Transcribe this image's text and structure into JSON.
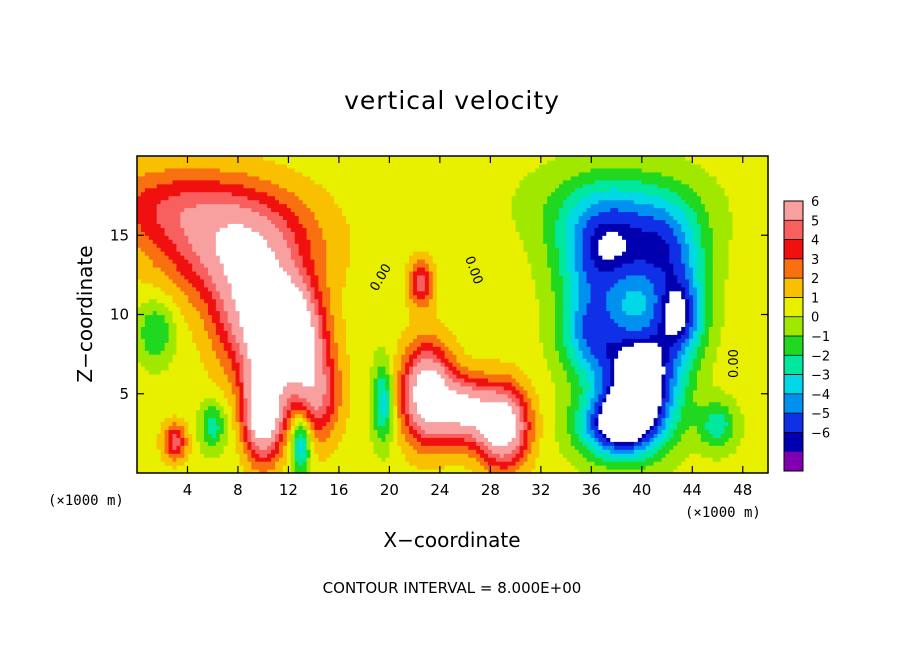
{
  "chart_data": {
    "type": "heatmap",
    "title": "vertical velocity",
    "xlabel": "X−coordinate",
    "ylabel": "Z−coordinate",
    "x_unit_label_left": "(×1000 m)",
    "x_unit_label_right": "(×1000 m)",
    "footer": "CONTOUR INTERVAL = 8.000E+00",
    "contour_label": "0.00",
    "xlim": [
      0,
      50
    ],
    "ylim": [
      0,
      20
    ],
    "x_ticks": [
      4,
      8,
      12,
      16,
      20,
      24,
      28,
      32,
      36,
      40,
      44,
      48
    ],
    "y_ticks": [
      5,
      10,
      15
    ],
    "colorbar": {
      "levels": [
        6,
        5,
        4,
        3,
        2,
        1,
        0,
        -1,
        -2,
        -3,
        -4,
        -5,
        -6
      ],
      "tick_labels": [
        "6",
        "5",
        "4",
        "3",
        "2",
        "1",
        "0",
        "−1",
        "−2",
        "−3",
        "−4",
        "−5",
        "−6"
      ],
      "colors": [
        "#f8a0a0",
        "#f86060",
        "#f01010",
        "#f87010",
        "#f8c000",
        "#e8f000",
        "#a0e800",
        "#20d820",
        "#00e8a0",
        "#00d8e8",
        "#0090f0",
        "#1030e8",
        "#0000b0",
        "#8000b0"
      ]
    },
    "features": [
      {
        "kind": "updraft",
        "x": 8,
        "z": 14.5,
        "sx": 6,
        "sz": 3.5,
        "w": 5.5
      },
      {
        "kind": "updraft",
        "x": 9,
        "z": 10,
        "sx": 3,
        "sz": 4,
        "w": 5
      },
      {
        "kind": "updraft",
        "x": 12,
        "z": 9,
        "sx": 2.5,
        "sz": 3,
        "w": 9
      },
      {
        "kind": "updraft",
        "x": 10,
        "z": 4,
        "sx": 1.5,
        "sz": 3,
        "w": 9
      },
      {
        "kind": "updraft",
        "x": 14,
        "z": 5,
        "sx": 2,
        "sz": 3,
        "w": 5
      },
      {
        "kind": "updraft",
        "x": 23,
        "z": 5,
        "sx": 2,
        "sz": 3,
        "w": 8
      },
      {
        "kind": "updraft",
        "x": 26,
        "z": 4,
        "sx": 2,
        "sz": 2,
        "w": 6
      },
      {
        "kind": "updraft",
        "x": 29,
        "z": 3,
        "sx": 2,
        "sz": 2.5,
        "w": 8
      },
      {
        "kind": "updraft",
        "x": 22.5,
        "z": 12,
        "sx": 1,
        "sz": 1.5,
        "w": 4
      },
      {
        "kind": "updraft",
        "x": 3,
        "z": 2,
        "sx": 1,
        "sz": 1.2,
        "w": 4
      },
      {
        "kind": "updraft",
        "x": 2,
        "z": 17,
        "sx": 6,
        "sz": 2.5,
        "w": 2.5
      },
      {
        "kind": "downdraft",
        "x": 37,
        "z": 14,
        "sx": 3.5,
        "sz": 3,
        "w": -6
      },
      {
        "kind": "downdraft",
        "x": 42,
        "z": 14,
        "sx": 3,
        "sz": 3,
        "w": -5
      },
      {
        "kind": "downdraft",
        "x": 36,
        "z": 9,
        "sx": 2.5,
        "sz": 3,
        "w": -5
      },
      {
        "kind": "downdraft",
        "x": 40,
        "z": 6,
        "sx": 3,
        "sz": 3.5,
        "w": -9
      },
      {
        "kind": "downdraft",
        "x": 38,
        "z": 3,
        "sx": 3,
        "sz": 2,
        "w": -7
      },
      {
        "kind": "downdraft",
        "x": 43,
        "z": 10,
        "sx": 2,
        "sz": 2.5,
        "w": -6
      },
      {
        "kind": "downdraft",
        "x": 13,
        "z": 2,
        "sx": 0.8,
        "sz": 2,
        "w": -5
      },
      {
        "kind": "downdraft",
        "x": 19.5,
        "z": 4.5,
        "sx": 0.8,
        "sz": 2.5,
        "w": -4
      },
      {
        "kind": "downdraft",
        "x": 6,
        "z": 3,
        "sx": 1,
        "sz": 1.5,
        "w": -3
      },
      {
        "kind": "downdraft",
        "x": 1.5,
        "z": 9,
        "sx": 1.5,
        "sz": 2,
        "w": -2.5
      },
      {
        "kind": "downdraft",
        "x": 46,
        "z": 3,
        "sx": 1.5,
        "sz": 1.5,
        "w": -3
      },
      {
        "kind": "downdraft",
        "x": 38,
        "z": 17,
        "sx": 6,
        "sz": 2.5,
        "w": -2.5
      }
    ]
  }
}
